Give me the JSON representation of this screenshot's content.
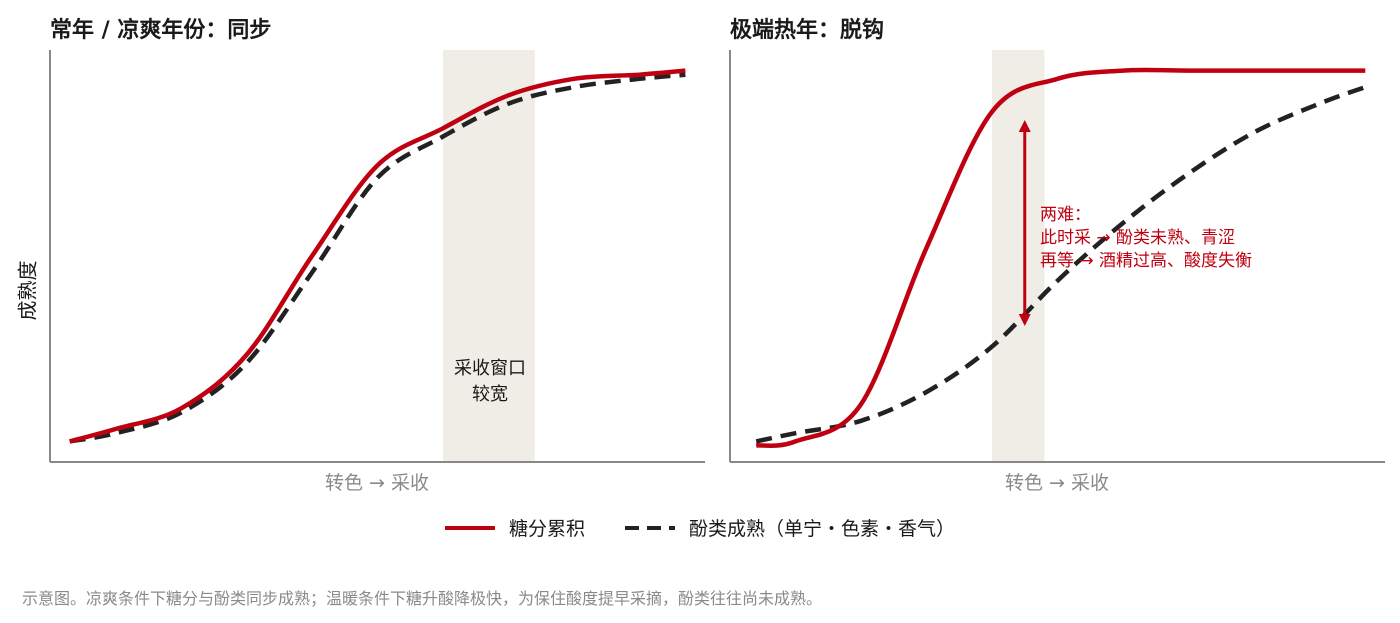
{
  "titles": {
    "left": "常年 / 凉爽年份：同步",
    "right": "极端热年：脱钩"
  },
  "ylabel": "成熟度",
  "xlabel": "转色 → 采收",
  "window_note": [
    "采收窗口",
    "较宽"
  ],
  "dilemma": [
    "两难：",
    "此时采 → 酚类未熟、青涩",
    "再等 → 酒精过高、酸度失衡"
  ],
  "legend": {
    "sugar": "糖分累积",
    "phenolic": "酚类成熟（单宁・色素・香气）"
  },
  "caption": "示意图。凉爽条件下糖分与酚类同步成熟；温暖条件下糖升酸降极快，为保住酸度提早采摘，酚类往往尚未成熟。",
  "colors": {
    "sugar": "#c00010",
    "phenolic": "#222222",
    "window": "#f0ece6",
    "axis": "#888888",
    "arrow": "#c00010"
  },
  "chart_data": [
    {
      "type": "line",
      "title": "常年 / 凉爽年份：同步",
      "xlabel": "转色 → 采收",
      "ylabel": "成熟度",
      "xlim": [
        0,
        1
      ],
      "ylim": [
        0,
        1
      ],
      "highlight_band": {
        "x": [
          0.6,
          0.74
        ],
        "label": "采收窗口较宽"
      },
      "series": [
        {
          "name": "糖分累积",
          "style": "solid",
          "color": "#c00010",
          "x": [
            0.03,
            0.1,
            0.2,
            0.3,
            0.4,
            0.5,
            0.6,
            0.7,
            0.8,
            0.9,
            0.97
          ],
          "y": [
            0.05,
            0.08,
            0.13,
            0.26,
            0.5,
            0.72,
            0.81,
            0.89,
            0.93,
            0.94,
            0.95
          ]
        },
        {
          "name": "酚类成熟（单宁・色素・香气）",
          "style": "dashed",
          "color": "#222222",
          "x": [
            0.03,
            0.1,
            0.2,
            0.3,
            0.4,
            0.5,
            0.6,
            0.7,
            0.8,
            0.9,
            0.97
          ],
          "y": [
            0.05,
            0.07,
            0.12,
            0.24,
            0.46,
            0.69,
            0.79,
            0.87,
            0.91,
            0.93,
            0.94
          ]
        }
      ]
    },
    {
      "type": "line",
      "title": "极端热年：脱钩",
      "xlabel": "转色 → 采收",
      "ylabel": "成熟度",
      "xlim": [
        0,
        1
      ],
      "ylim": [
        0,
        1
      ],
      "highlight_band": {
        "x": [
          0.4,
          0.48
        ]
      },
      "annotation": {
        "type": "double-arrow",
        "x": 0.45,
        "y": [
          0.33,
          0.83
        ],
        "text": [
          "两难：",
          "此时采 → 酚类未熟、青涩",
          "再等 → 酒精过高、酸度失衡"
        ]
      },
      "series": [
        {
          "name": "糖分累积",
          "style": "solid",
          "color": "#c00010",
          "x": [
            0.04,
            0.1,
            0.2,
            0.3,
            0.4,
            0.5,
            0.6,
            0.7,
            0.8,
            0.9,
            0.97
          ],
          "y": [
            0.04,
            0.05,
            0.14,
            0.52,
            0.85,
            0.93,
            0.95,
            0.95,
            0.95,
            0.95,
            0.95
          ]
        },
        {
          "name": "酚类成熟（单宁・色素・香气）",
          "style": "dashed",
          "color": "#222222",
          "x": [
            0.04,
            0.1,
            0.2,
            0.3,
            0.4,
            0.5,
            0.6,
            0.7,
            0.8,
            0.9,
            0.97
          ],
          "y": [
            0.05,
            0.07,
            0.1,
            0.17,
            0.28,
            0.44,
            0.58,
            0.7,
            0.8,
            0.87,
            0.91
          ]
        }
      ]
    }
  ]
}
